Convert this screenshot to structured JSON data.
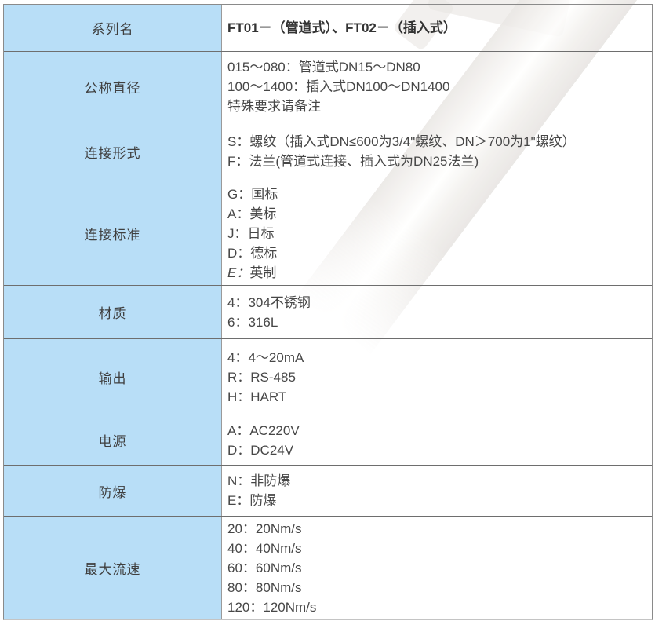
{
  "table": {
    "rows": [
      {
        "id": "series-name",
        "label": "系列名",
        "lines": [
          {
            "t": "FT01－（管道式）、FT02－（插入式）",
            "b": true
          }
        ]
      },
      {
        "id": "nominal-diameter",
        "label": "公称直径",
        "lines": [
          {
            "t": "015～080：管道式DN15～DN80"
          },
          {
            "t": "100～1400：插入式DN100～DN1400"
          },
          {
            "t": "特殊要求请备注"
          }
        ]
      },
      {
        "id": "connection-type",
        "label": "连接形式",
        "lines": [
          {
            "t": "S：螺纹（插入式DN≤600为3/4\"螺纹、DN＞700为1\"螺纹）"
          },
          {
            "t": "F：法兰(管道式连接、插入式为DN25法兰)"
          }
        ]
      },
      {
        "id": "connection-standard",
        "label": "连接标准",
        "lines": [
          {
            "t": "G：国标"
          },
          {
            "t": "A：美标"
          },
          {
            "t": "J：日标"
          },
          {
            "t": "D：德标"
          },
          {
            "t": "E：英制",
            "i": true
          }
        ]
      },
      {
        "id": "material",
        "label": "材质",
        "lines": [
          {
            "t": "4：304不锈钢"
          },
          {
            "t": "6：316L"
          }
        ]
      },
      {
        "id": "output",
        "label": "输出",
        "lines": [
          {
            "t": "4：4～20mA"
          },
          {
            "t": "R：RS-485"
          },
          {
            "t": "H：HART"
          }
        ]
      },
      {
        "id": "power-supply",
        "label": "电源",
        "lines": [
          {
            "t": "A：AC220V"
          },
          {
            "t": "D：DC24V"
          }
        ]
      },
      {
        "id": "explosion-proof",
        "label": "防爆",
        "lines": [
          {
            "t": "N：非防爆"
          },
          {
            "t": "E：防爆"
          }
        ]
      },
      {
        "id": "max-flow-velocity",
        "label": "最大流速",
        "lines": [
          {
            "t": "20：20Nm/s"
          },
          {
            "t": "40：40Nm/s"
          },
          {
            "t": "60：60Nm/s"
          },
          {
            "t": "80：80Nm/s"
          },
          {
            "t": "120：120Nm/s"
          }
        ]
      }
    ]
  },
  "colors": {
    "header_column_bg": "#b8def7",
    "border_inner": "#6e6e6e",
    "border_outer": "#8a8a8a",
    "border_bottom": "#c4c4c4",
    "text": "#3f3f3f",
    "watermark_gray": "#e9e6e3"
  },
  "watermark": {
    "description": "faded-product-photo-of-insertion-flowmeter"
  }
}
